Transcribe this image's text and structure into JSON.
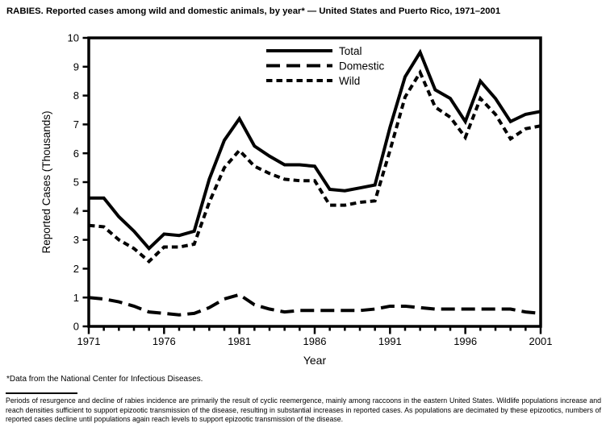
{
  "page": {
    "title": "RABIES. Reported cases among wild and domestic animals, by year* — United States and Puerto Rico, 1971–2001",
    "footnote": "*Data from the National Center for Infectious Diseases.",
    "note": "Periods of resurgence and decline of rabies incidence are primarily the result of cyclic reemergence, mainly among raccoons in the eastern United States. Wildlife populations increase and reach densities sufficient to support epizootic transmission of the disease, resulting in substantial increases in reported cases. As populations are decimated by these epizootics, numbers of reported cases decline until populations again reach levels to support epizootic transmission of the disease."
  },
  "colors": {
    "foreground": "#000000",
    "background": "#ffffff"
  },
  "chart_data": {
    "type": "line",
    "title": "RABIES. Reported cases among wild and domestic animals, by year — United States and Puerto Rico, 1971–2001",
    "xlabel": "Year",
    "ylabel": "Reported Cases (Thousands)",
    "xlim": [
      1971,
      2001
    ],
    "ylim": [
      0,
      10
    ],
    "x_major_ticks": [
      1971,
      1976,
      1981,
      1986,
      1991,
      1996,
      2001
    ],
    "x_minor_tick_interval": 1,
    "y_ticks": [
      0,
      1,
      2,
      3,
      4,
      5,
      6,
      7,
      8,
      9,
      10
    ],
    "grid": false,
    "legend_position": "top-center-inside",
    "x": [
      1971,
      1972,
      1973,
      1974,
      1975,
      1976,
      1977,
      1978,
      1979,
      1980,
      1981,
      1982,
      1983,
      1984,
      1985,
      1986,
      1987,
      1988,
      1989,
      1990,
      1991,
      1992,
      1993,
      1994,
      1995,
      1996,
      1997,
      1998,
      1999,
      2000,
      2001
    ],
    "series": [
      {
        "name": "Total",
        "style": "solid",
        "values": [
          4.45,
          4.45,
          3.8,
          3.3,
          2.7,
          3.2,
          3.15,
          3.3,
          5.1,
          6.45,
          7.2,
          6.25,
          5.9,
          5.6,
          5.6,
          5.55,
          4.75,
          4.7,
          4.8,
          4.9,
          6.9,
          8.65,
          9.5,
          8.2,
          7.9,
          7.1,
          8.5,
          7.9,
          7.1,
          7.35,
          7.45
        ]
      },
      {
        "name": "Domestic",
        "style": "long-dash",
        "values": [
          1.0,
          0.95,
          0.85,
          0.7,
          0.5,
          0.45,
          0.4,
          0.45,
          0.65,
          0.95,
          1.1,
          0.75,
          0.6,
          0.5,
          0.55,
          0.55,
          0.55,
          0.55,
          0.55,
          0.6,
          0.7,
          0.7,
          0.65,
          0.6,
          0.6,
          0.6,
          0.6,
          0.6,
          0.6,
          0.5,
          0.45
        ]
      },
      {
        "name": "Wild",
        "style": "short-dash",
        "values": [
          3.5,
          3.45,
          3.0,
          2.7,
          2.25,
          2.75,
          2.75,
          2.85,
          4.3,
          5.5,
          6.1,
          5.55,
          5.3,
          5.1,
          5.05,
          5.05,
          4.2,
          4.2,
          4.3,
          4.35,
          6.1,
          7.95,
          8.8,
          7.6,
          7.25,
          6.55,
          7.9,
          7.35,
          6.5,
          6.85,
          6.95
        ]
      }
    ]
  }
}
